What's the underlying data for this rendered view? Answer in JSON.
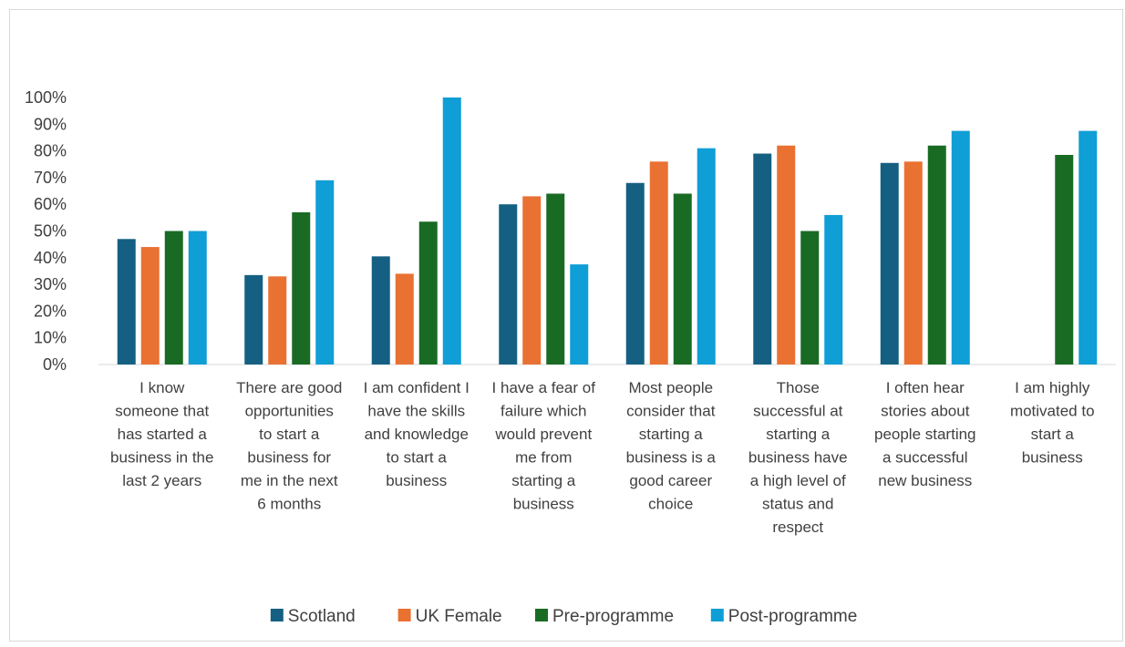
{
  "chart_data": {
    "type": "bar",
    "title": "",
    "xlabel": "",
    "ylabel": "",
    "ylim": [
      0,
      100
    ],
    "y_ticks": [
      "0%",
      "10%",
      "20%",
      "30%",
      "40%",
      "50%",
      "60%",
      "70%",
      "80%",
      "90%",
      "100%"
    ],
    "grid": false,
    "legend_position": "bottom",
    "categories": [
      "I know someone that has started a business in the last 2 years",
      "There are good opportunities to start a business for me in the next 6 months",
      "I am confident I have the skills and knowledge to start a business",
      "I have a fear of failure which would prevent me from starting a business",
      "Most people consider that starting a business is a good career choice",
      "Those successful at starting a business have a high level of status and respect",
      "I often hear stories about people starting a successful new business",
      "I am highly motivated to start a business"
    ],
    "category_lines": [
      [
        "I know",
        "someone that",
        "has started a",
        "business in the",
        "last 2 years"
      ],
      [
        "There are good",
        "opportunities",
        "to start a",
        "business for",
        "me in the next",
        "6 months"
      ],
      [
        "I am confident I",
        "have the skills",
        "and knowledge",
        "to start a",
        "business"
      ],
      [
        "I have a fear of",
        "failure which",
        "would prevent",
        "me from",
        "starting a",
        "business"
      ],
      [
        "Most people",
        "consider that",
        "starting a",
        "business is a",
        "good career",
        "choice"
      ],
      [
        "Those",
        "successful at",
        "starting a",
        "business have",
        "a high level of",
        "status and",
        "respect"
      ],
      [
        "I often hear",
        "stories about",
        "people starting",
        "a successful",
        "new business"
      ],
      [
        "I am highly",
        "motivated to",
        "start a",
        "business"
      ]
    ],
    "series": [
      {
        "name": "Scotland",
        "color": "#156082",
        "values": [
          47,
          33.5,
          40.5,
          60,
          68,
          79,
          75.5,
          null
        ]
      },
      {
        "name": "UK Female",
        "color": "#E97132",
        "values": [
          44,
          33,
          34,
          63,
          76,
          82,
          76,
          null
        ]
      },
      {
        "name": "Pre-programme",
        "color": "#196B24",
        "values": [
          50,
          57,
          53.5,
          64,
          64,
          50,
          82,
          78.5
        ]
      },
      {
        "name": "Post-programme",
        "color": "#0F9ED5",
        "values": [
          50,
          69,
          100,
          37.5,
          81,
          56,
          87.5,
          87.5
        ]
      }
    ]
  }
}
